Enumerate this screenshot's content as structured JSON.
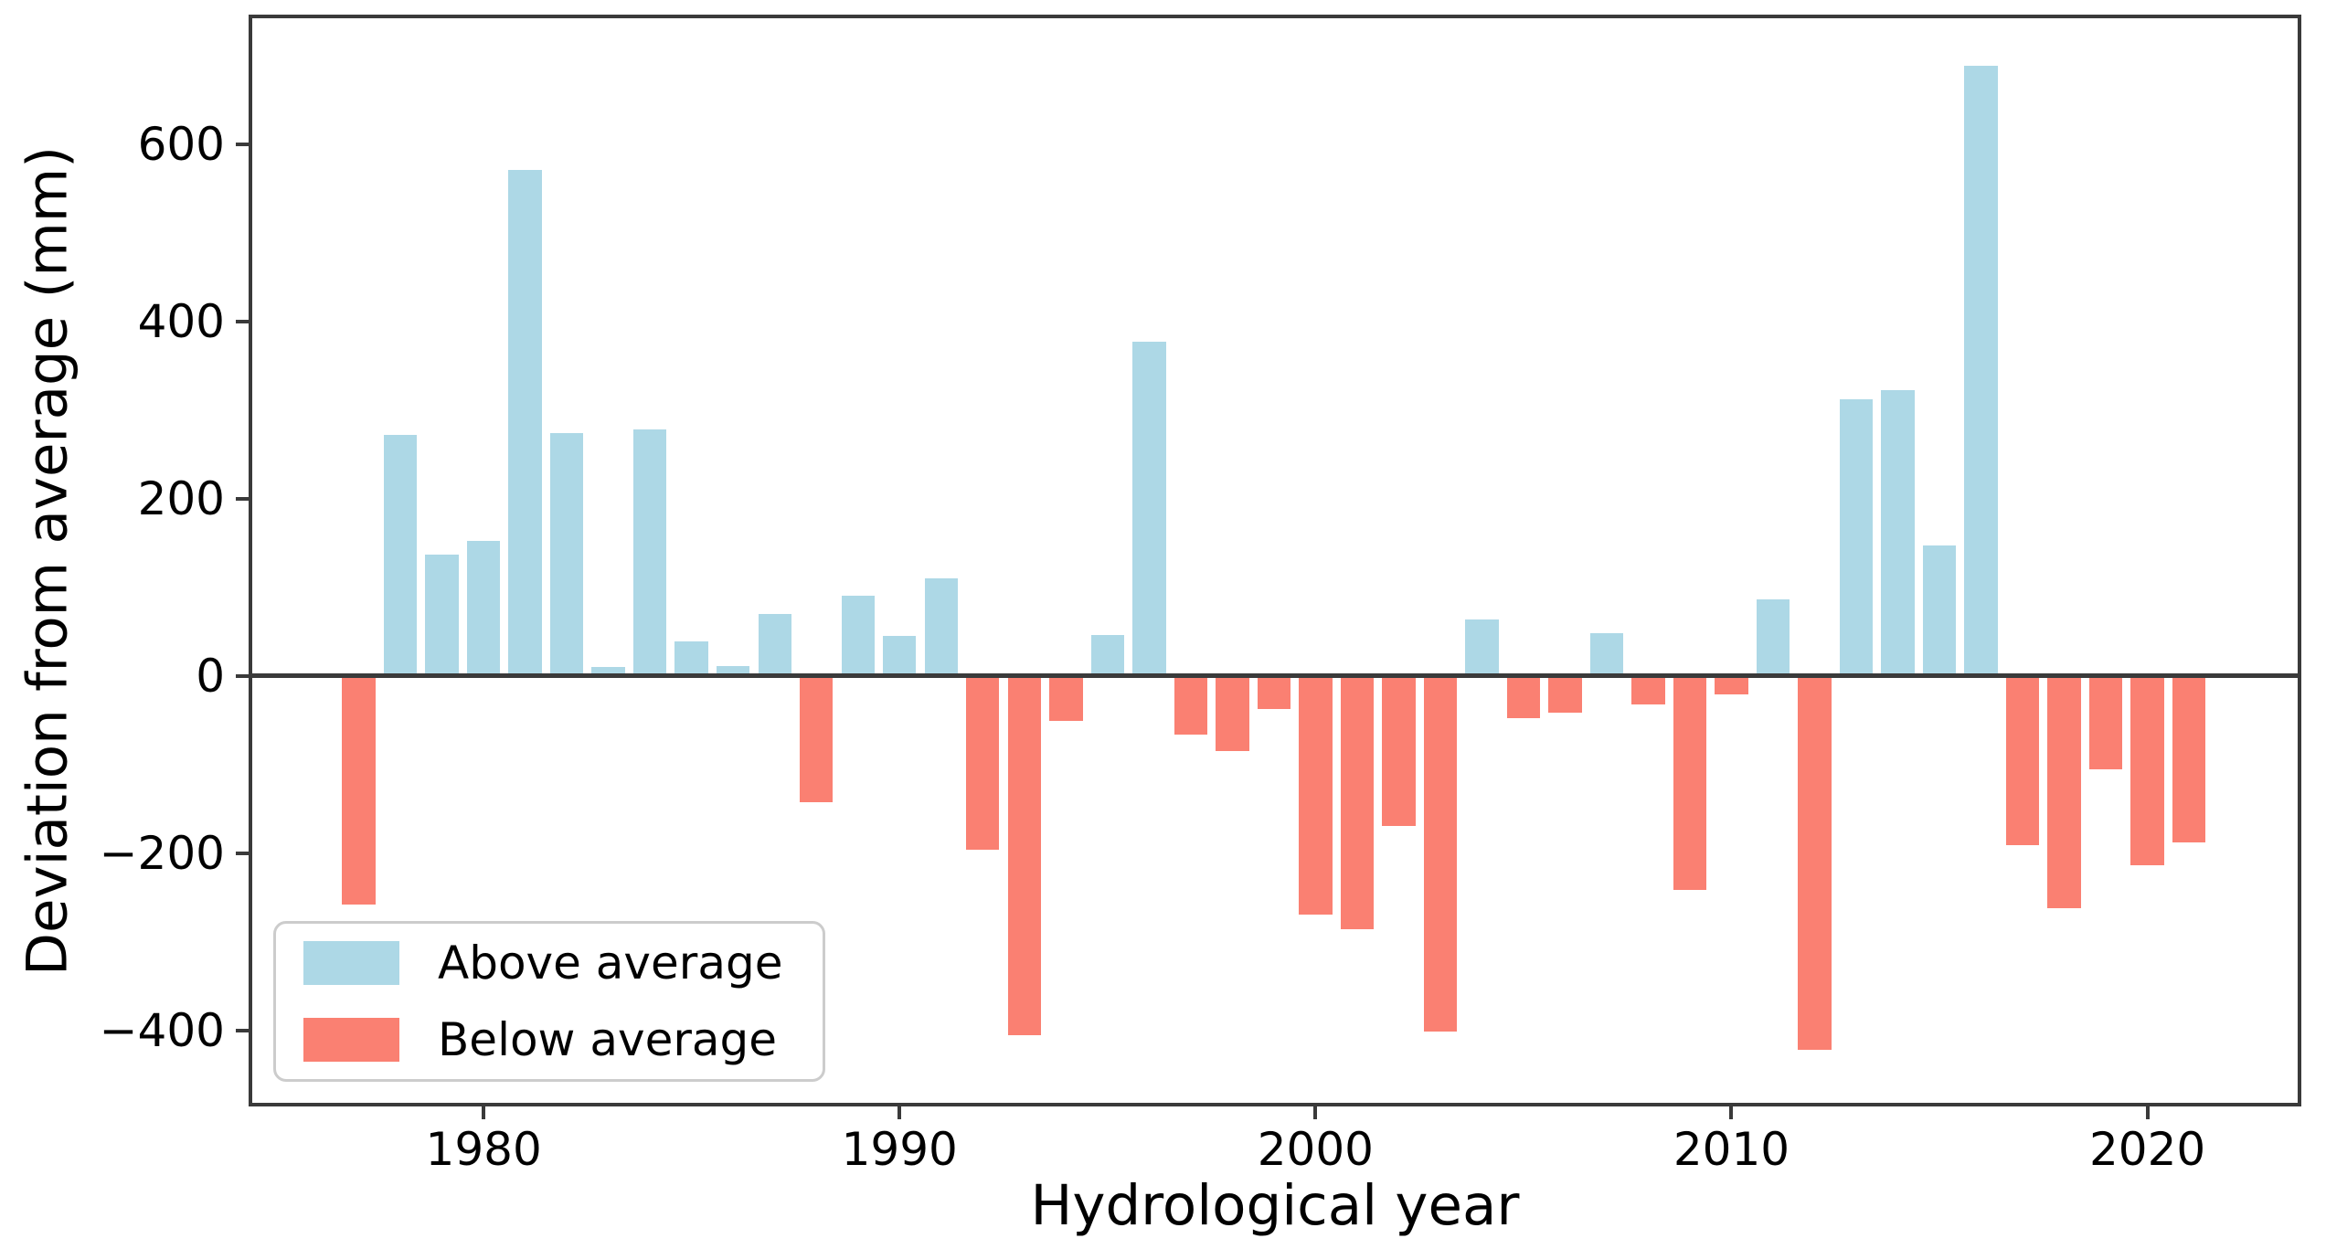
{
  "chart_data": {
    "type": "bar",
    "title": "",
    "xlabel": "Hydrological year",
    "ylabel": "Deviation from average (mm)",
    "grid": false,
    "zero_line": true,
    "xlim": [
      1974.35,
      2023.7
    ],
    "ylim": [
      -486,
      746
    ],
    "x_ticks": [
      1980,
      1990,
      2000,
      2010,
      2020
    ],
    "y_ticks": [
      600,
      400,
      200,
      0,
      -200,
      -400
    ],
    "bar_width_years": 0.8,
    "categories": [
      1977,
      1978,
      1979,
      1980,
      1981,
      1982,
      1983,
      1984,
      1985,
      1986,
      1987,
      1988,
      1989,
      1990,
      1991,
      1992,
      1993,
      1994,
      1995,
      1996,
      1997,
      1998,
      1999,
      2000,
      2001,
      2002,
      2003,
      2004,
      2005,
      2006,
      2007,
      2008,
      2009,
      2010,
      2011,
      2012,
      2013,
      2014,
      2015,
      2016,
      2017,
      2018,
      2019,
      2020,
      2021
    ],
    "values": [
      -258,
      272,
      137,
      152,
      571,
      274,
      10,
      278,
      39,
      11,
      70,
      -143,
      90,
      45,
      110,
      -196,
      -406,
      -51,
      46,
      377,
      -66,
      -85,
      -38,
      -270,
      -286,
      -170,
      -401,
      63,
      -48,
      -42,
      48,
      -32,
      -242,
      -21,
      86,
      -422,
      312,
      322,
      147,
      688,
      -191,
      -262,
      -106,
      -214,
      -188
    ],
    "legend": {
      "position": "lower left",
      "entries": [
        {
          "label": "Above average",
          "color": "#ADD8E6"
        },
        {
          "label": "Below average",
          "color": "#FA8072"
        }
      ]
    },
    "colors": {
      "above": "#ADD8E6",
      "below": "#FA8072",
      "spine": "#3a3a3a",
      "text": "#000000",
      "legend_border": "#cccccc"
    }
  }
}
